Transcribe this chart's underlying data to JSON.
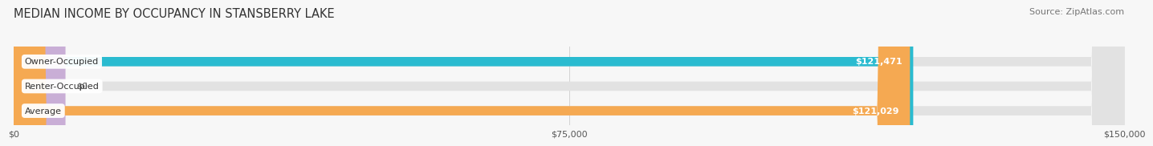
{
  "title": "MEDIAN INCOME BY OCCUPANCY IN STANSBERRY LAKE",
  "source": "Source: ZipAtlas.com",
  "categories": [
    "Owner-Occupied",
    "Renter-Occupied",
    "Average"
  ],
  "values": [
    121471,
    0,
    121029
  ],
  "bar_colors": [
    "#2abbd0",
    "#c9aed6",
    "#f5a952"
  ],
  "bar_labels": [
    "$121,471",
    "$0",
    "$121,029"
  ],
  "xlim": [
    0,
    150000
  ],
  "xticks": [
    0,
    75000,
    150000
  ],
  "xtick_labels": [
    "$0",
    "$75,000",
    "$150,000"
  ],
  "bg_color": "#f7f7f7",
  "bar_bg_color": "#e2e2e2",
  "title_fontsize": 10.5,
  "source_fontsize": 8,
  "bar_height": 0.38
}
